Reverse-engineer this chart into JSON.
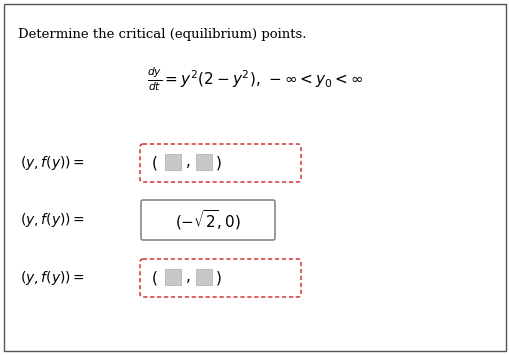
{
  "title_text": "Determine the critical (equilibrium) points.",
  "bg_color": "#ffffff",
  "border_color": "#555555",
  "red_dashed_color": "#cc2222",
  "figsize": [
    5.1,
    3.55
  ],
  "dpi": 100
}
